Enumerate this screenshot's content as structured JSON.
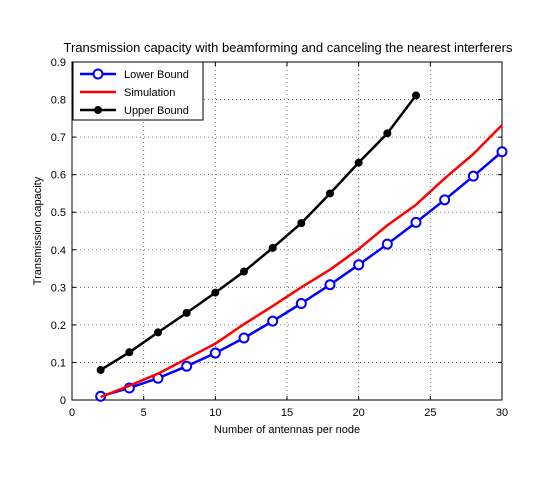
{
  "chart_data": {
    "type": "line",
    "title": "Transmission capacity with beamforming and canceling the nearest interferers",
    "xlabel": "Number of antennas per node",
    "ylabel": "Transmission capacity",
    "xlim": [
      0,
      30
    ],
    "ylim": [
      0,
      0.9
    ],
    "xticks": [
      0,
      5,
      10,
      15,
      20,
      25,
      30
    ],
    "yticks": [
      0,
      0.1,
      0.2,
      0.3,
      0.4,
      0.5,
      0.6,
      0.7,
      0.8,
      0.9
    ],
    "xtick_labels": [
      "0",
      "5",
      "10",
      "15",
      "20",
      "25",
      "30"
    ],
    "ytick_labels": [
      "0",
      "0.1",
      "0.2",
      "0.3",
      "0.4",
      "0.5",
      "0.6",
      "0.7",
      "0.8",
      "0.9"
    ],
    "grid": true,
    "legend_position": "top-left",
    "series": [
      {
        "name": "Lower Bound",
        "color": "#0000ff",
        "marker": "open-circle",
        "x": [
          2,
          4,
          6,
          8,
          10,
          12,
          14,
          16,
          18,
          20,
          22,
          24,
          26,
          28,
          30
        ],
        "y": [
          0.01,
          0.032,
          0.058,
          0.09,
          0.125,
          0.165,
          0.21,
          0.257,
          0.307,
          0.36,
          0.415,
          0.473,
          0.533,
          0.596,
          0.661
        ]
      },
      {
        "name": "Simulation",
        "color": "#ff0000",
        "marker": "none",
        "x": [
          2,
          4,
          6,
          8,
          10,
          12,
          14,
          16,
          18,
          20,
          22,
          24,
          26,
          28,
          30
        ],
        "y": [
          0.008,
          0.038,
          0.07,
          0.11,
          0.15,
          0.202,
          0.25,
          0.3,
          0.347,
          0.402,
          0.465,
          0.52,
          0.59,
          0.655,
          0.732
        ]
      },
      {
        "name": "Upper Bound",
        "color": "#000000",
        "marker": "filled-circle",
        "x": [
          2,
          4,
          6,
          8,
          10,
          12,
          14,
          16,
          18,
          20,
          22,
          24
        ],
        "y": [
          0.08,
          0.127,
          0.18,
          0.232,
          0.286,
          0.342,
          0.405,
          0.471,
          0.55,
          0.632,
          0.71,
          0.811
        ]
      }
    ]
  }
}
